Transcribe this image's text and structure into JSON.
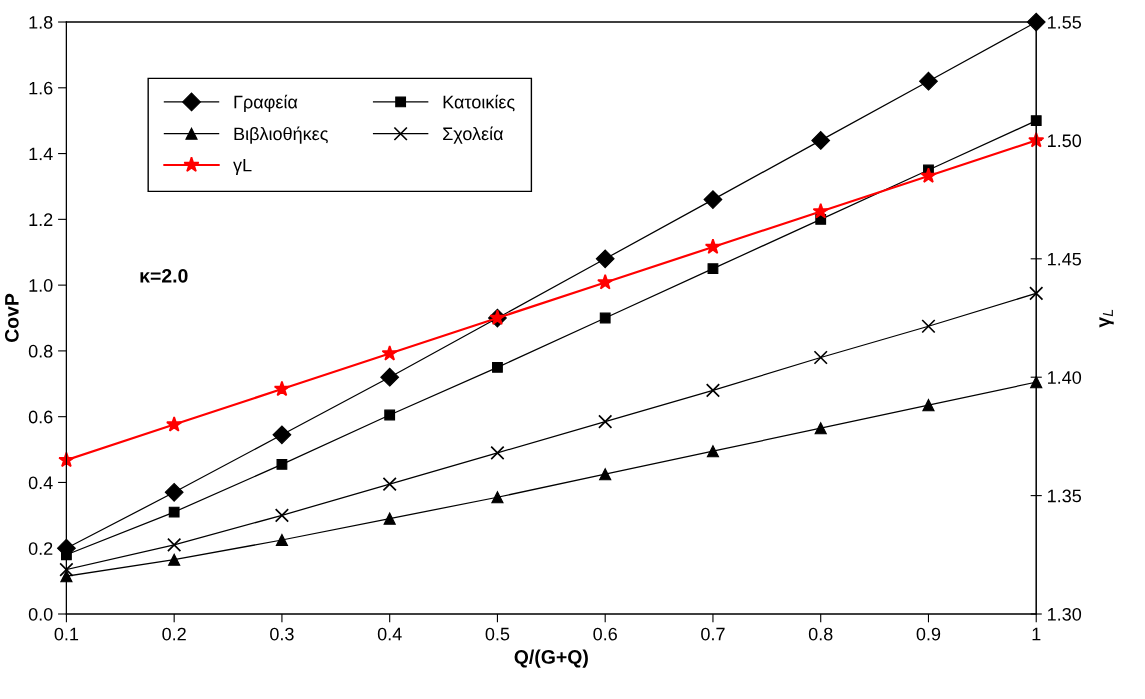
{
  "chart_data": {
    "type": "line",
    "xlabel": "Q/(G+Q)",
    "ylabel": "CovP",
    "y2label": "γ$_{L}$",
    "x": [
      0.1,
      0.2,
      0.3,
      0.4,
      0.5,
      0.6,
      0.7,
      0.8,
      0.9,
      1.0
    ],
    "series": [
      {
        "name": "Γραφεία",
        "color": "#000000",
        "marker": "diamond",
        "values": [
          0.2,
          0.37,
          0.545,
          0.72,
          0.9,
          1.08,
          1.26,
          1.44,
          1.62,
          1.8
        ]
      },
      {
        "name": "Κατοικίες",
        "color": "#000000",
        "marker": "square",
        "values": [
          0.18,
          0.31,
          0.455,
          0.605,
          0.75,
          0.9,
          1.05,
          1.2,
          1.35,
          1.5
        ]
      },
      {
        "name": "Βιβλιοθήκες",
        "color": "#000000",
        "marker": "triangle",
        "values": [
          0.115,
          0.165,
          0.225,
          0.29,
          0.355,
          0.425,
          0.495,
          0.565,
          0.635,
          0.705
        ]
      },
      {
        "name": "Σχολεία",
        "color": "#000000",
        "marker": "cross",
        "values": [
          0.135,
          0.21,
          0.3,
          0.395,
          0.49,
          0.585,
          0.68,
          0.78,
          0.875,
          0.975
        ]
      },
      {
        "name": "γL",
        "color": "#ff0000",
        "marker": "star",
        "axis": "y2",
        "values": [
          1.365,
          1.38,
          1.395,
          1.41,
          1.425,
          1.44,
          1.455,
          1.47,
          1.485,
          1.5
        ]
      }
    ],
    "xlim": [
      0.1,
      1.0
    ],
    "xticks": [
      0.1,
      0.2,
      0.3,
      0.4,
      0.5,
      0.6,
      0.7,
      0.8,
      0.9,
      {
        "value": 1.0,
        "label": "1"
      }
    ],
    "ylim": [
      0,
      1.8
    ],
    "yticks": [
      {
        "value": 0,
        "label": "0.0"
      },
      0.2,
      0.4,
      0.6,
      0.8,
      {
        "value": 1.0,
        "label": "1.0"
      },
      1.2,
      1.4,
      1.6,
      1.8
    ],
    "y2lim": [
      1.3,
      1.55
    ],
    "y2ticks": [
      {
        "value": 1.3,
        "label": "1.30"
      },
      1.35,
      {
        "value": 1.4,
        "label": "1.40"
      },
      1.45,
      {
        "value": 1.5,
        "label": "1.50"
      },
      1.55
    ],
    "annotations": [
      "κ=2.0"
    ],
    "legend": "top left",
    "grid": false,
    "line_style": "solid"
  }
}
